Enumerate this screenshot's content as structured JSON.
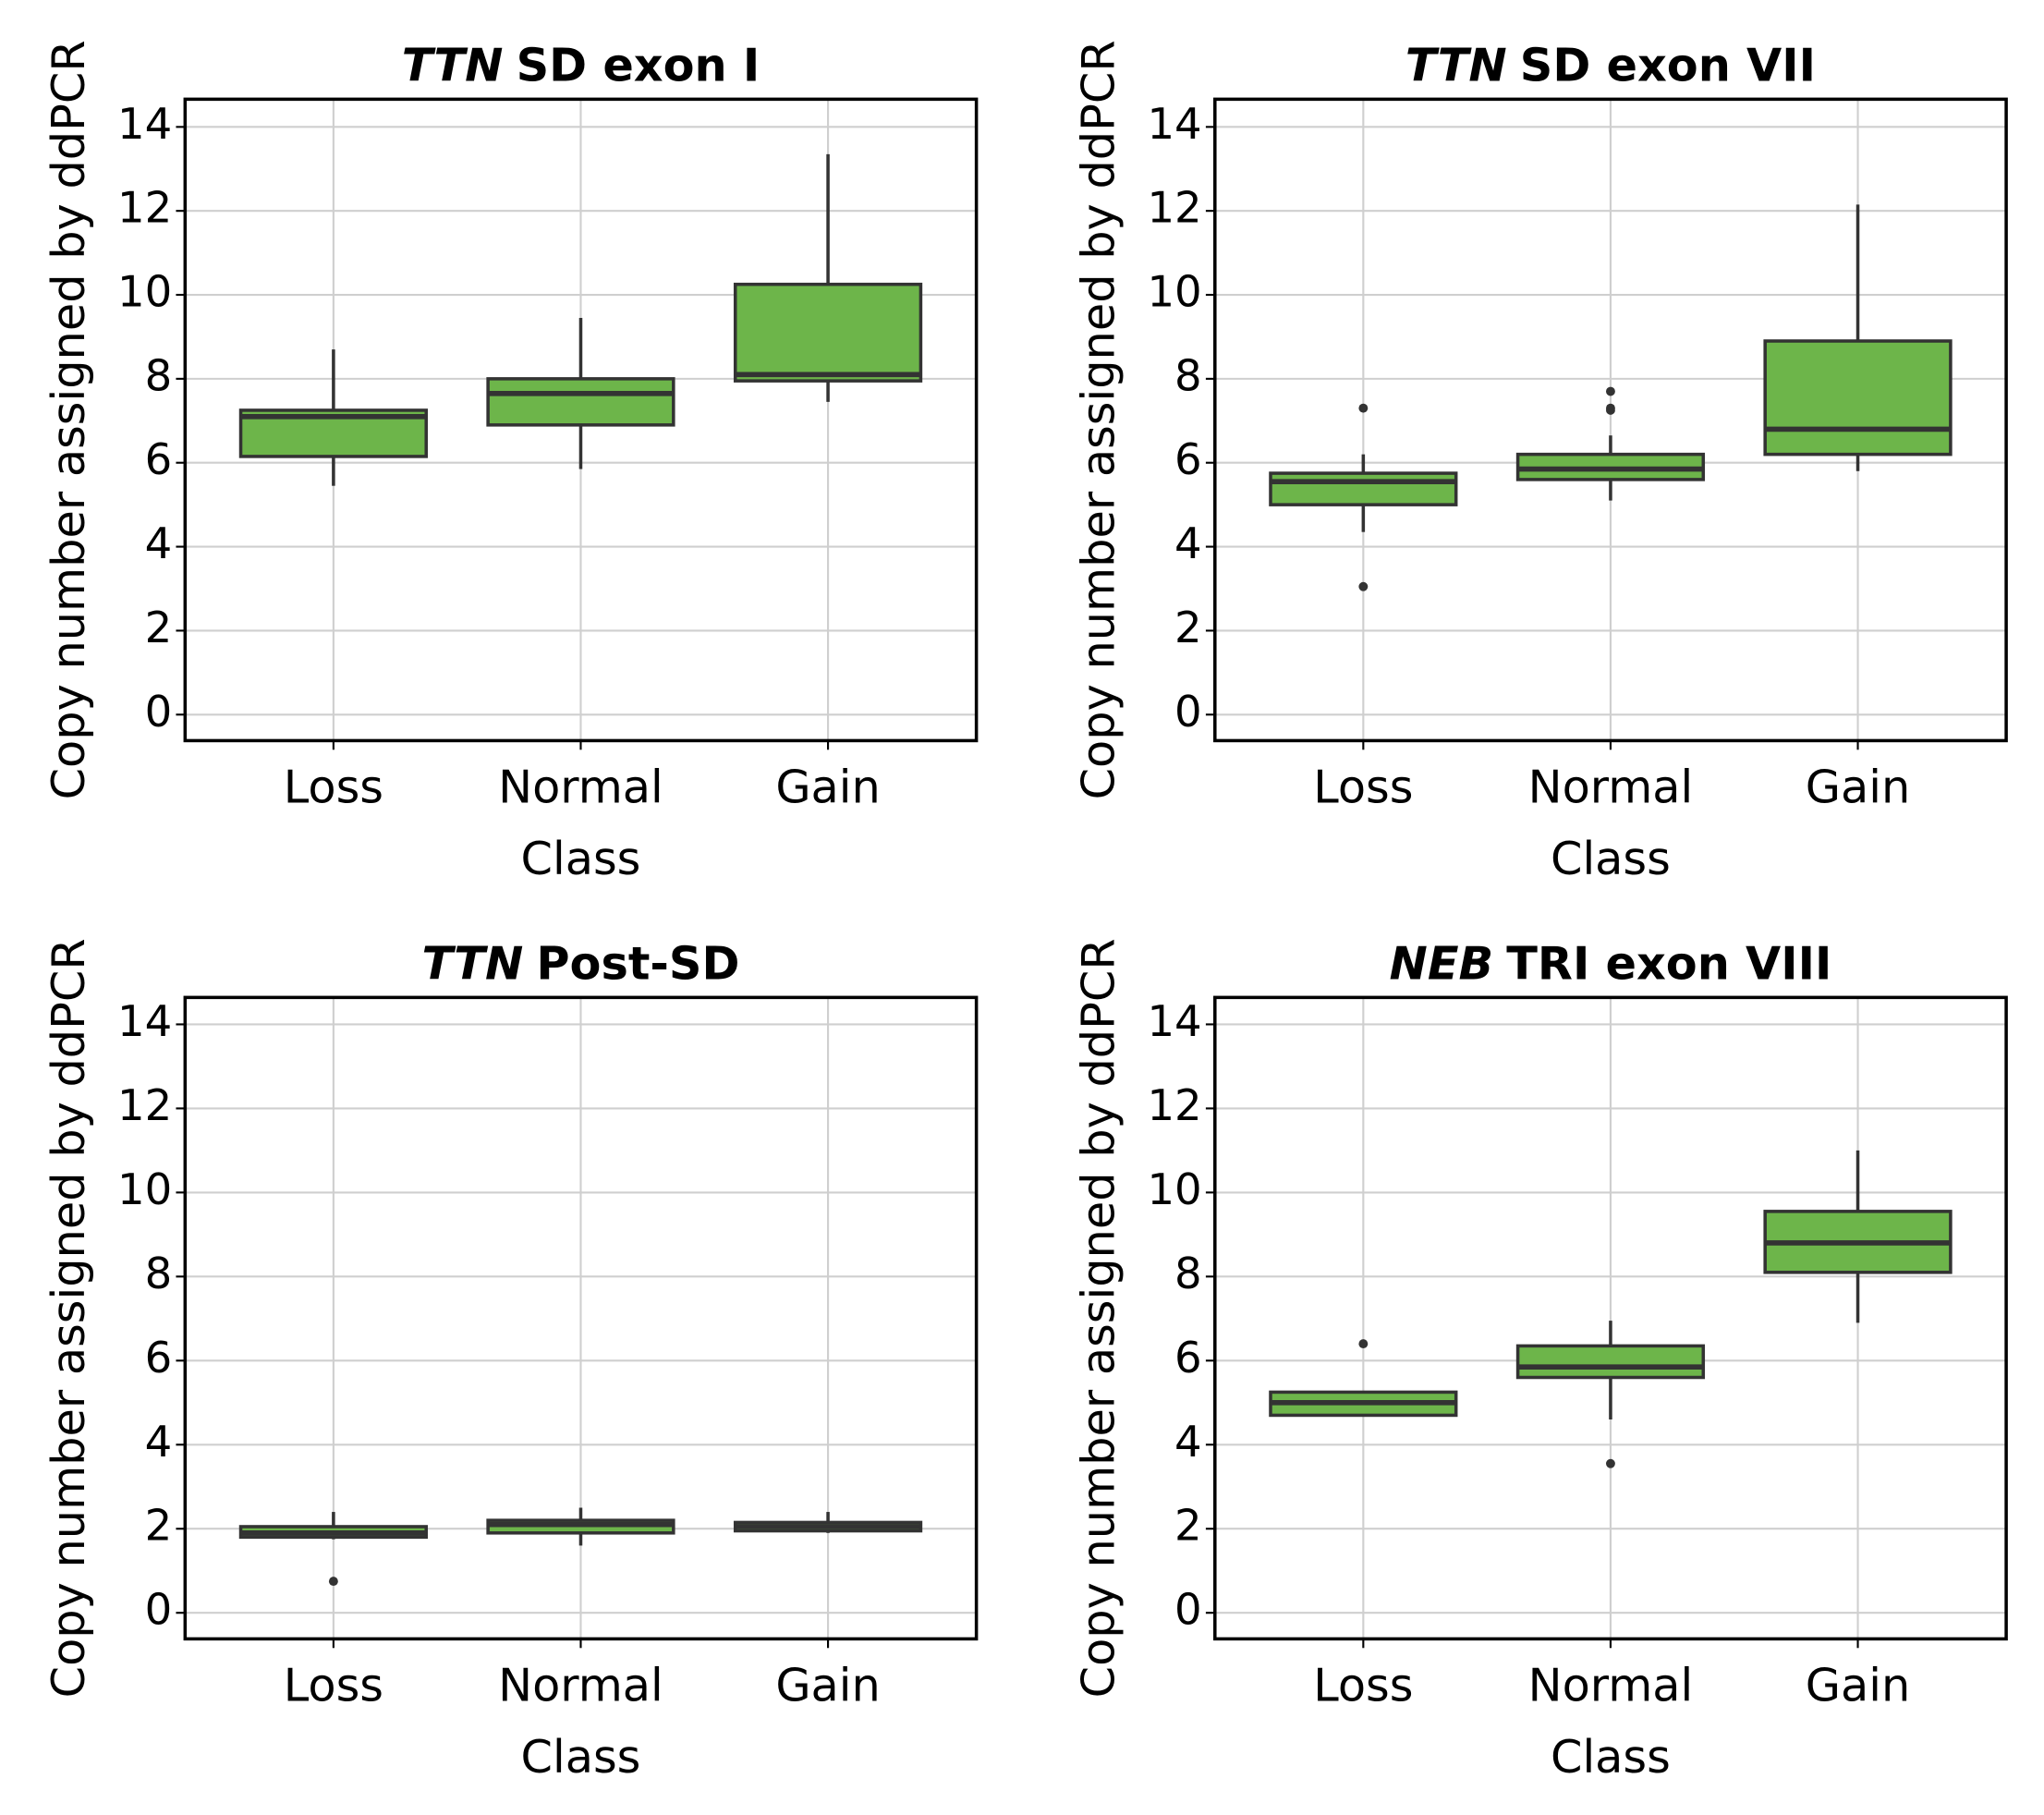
{
  "chart_data": [
    {
      "type": "box",
      "title": {
        "italic": "TTN",
        "text": "SD exon I"
      },
      "xlabel": "Class",
      "ylabel": "Copy number assigned by ddPCR",
      "categories": [
        "Loss",
        "Normal",
        "Gain"
      ],
      "color": "#6db54a",
      "grid": true,
      "ylim": [
        -0.62,
        14.66
      ],
      "yticks": [
        0,
        2,
        4,
        6,
        8,
        10,
        12,
        14
      ],
      "boxes": [
        {
          "whislo": 5.45,
          "q1": 6.15,
          "med": 7.1,
          "q3": 7.25,
          "whishi": 8.7,
          "fliers": []
        },
        {
          "whislo": 5.85,
          "q1": 6.9,
          "med": 7.65,
          "q3": 8.0,
          "whishi": 9.45,
          "fliers": []
        },
        {
          "whislo": 7.45,
          "q1": 7.95,
          "med": 8.1,
          "q3": 10.25,
          "whishi": 13.35,
          "fliers": []
        }
      ]
    },
    {
      "type": "box",
      "title": {
        "italic": "TTN",
        "text": "SD exon VII"
      },
      "xlabel": "Class",
      "ylabel": "Copy number assigned by ddPCR",
      "categories": [
        "Loss",
        "Normal",
        "Gain"
      ],
      "color": "#6db54a",
      "grid": true,
      "ylim": [
        -0.62,
        14.66
      ],
      "yticks": [
        0,
        2,
        4,
        6,
        8,
        10,
        12,
        14
      ],
      "boxes": [
        {
          "whislo": 4.35,
          "q1": 5.0,
          "med": 5.55,
          "q3": 5.75,
          "whishi": 6.2,
          "fliers": [
            7.3,
            3.05
          ]
        },
        {
          "whislo": 5.1,
          "q1": 5.6,
          "med": 5.85,
          "q3": 6.2,
          "whishi": 6.65,
          "fliers": [
            7.25,
            7.3,
            7.7
          ]
        },
        {
          "whislo": 5.8,
          "q1": 6.2,
          "med": 6.8,
          "q3": 8.9,
          "whishi": 12.15,
          "fliers": []
        }
      ]
    },
    {
      "type": "box",
      "title": {
        "italic": "TTN",
        "text": "Post-SD"
      },
      "xlabel": "Class",
      "ylabel": "Copy number assigned by ddPCR",
      "categories": [
        "Loss",
        "Normal",
        "Gain"
      ],
      "color": "#6db54a",
      "grid": true,
      "ylim": [
        -0.62,
        14.64
      ],
      "yticks": [
        0,
        2,
        4,
        6,
        8,
        10,
        12,
        14
      ],
      "boxes": [
        {
          "whislo": 1.75,
          "q1": 1.8,
          "med": 1.9,
          "q3": 2.05,
          "whishi": 2.4,
          "fliers": [
            0.75
          ]
        },
        {
          "whislo": 1.6,
          "q1": 1.9,
          "med": 2.1,
          "q3": 2.2,
          "whishi": 2.5,
          "fliers": []
        },
        {
          "whislo": 1.9,
          "q1": 1.95,
          "med": 2.05,
          "q3": 2.15,
          "whishi": 2.4,
          "fliers": []
        }
      ]
    },
    {
      "type": "box",
      "title": {
        "italic": "NEB",
        "text": "TRI exon VIII"
      },
      "xlabel": "Class",
      "ylabel": "Copy number assigned by ddPCR",
      "categories": [
        "Loss",
        "Normal",
        "Gain"
      ],
      "color": "#6db54a",
      "grid": true,
      "ylim": [
        -0.62,
        14.64
      ],
      "yticks": [
        0,
        2,
        4,
        6,
        8,
        10,
        12,
        14
      ],
      "boxes": [
        {
          "whislo": 4.7,
          "q1": 4.7,
          "med": 5.0,
          "q3": 5.25,
          "whishi": 5.25,
          "fliers": [
            6.4
          ]
        },
        {
          "whislo": 4.6,
          "q1": 5.6,
          "med": 5.85,
          "q3": 6.35,
          "whishi": 6.95,
          "fliers": [
            3.55
          ]
        },
        {
          "whislo": 6.9,
          "q1": 8.1,
          "med": 8.8,
          "q3": 9.55,
          "whishi": 11.0,
          "fliers": []
        }
      ]
    }
  ]
}
